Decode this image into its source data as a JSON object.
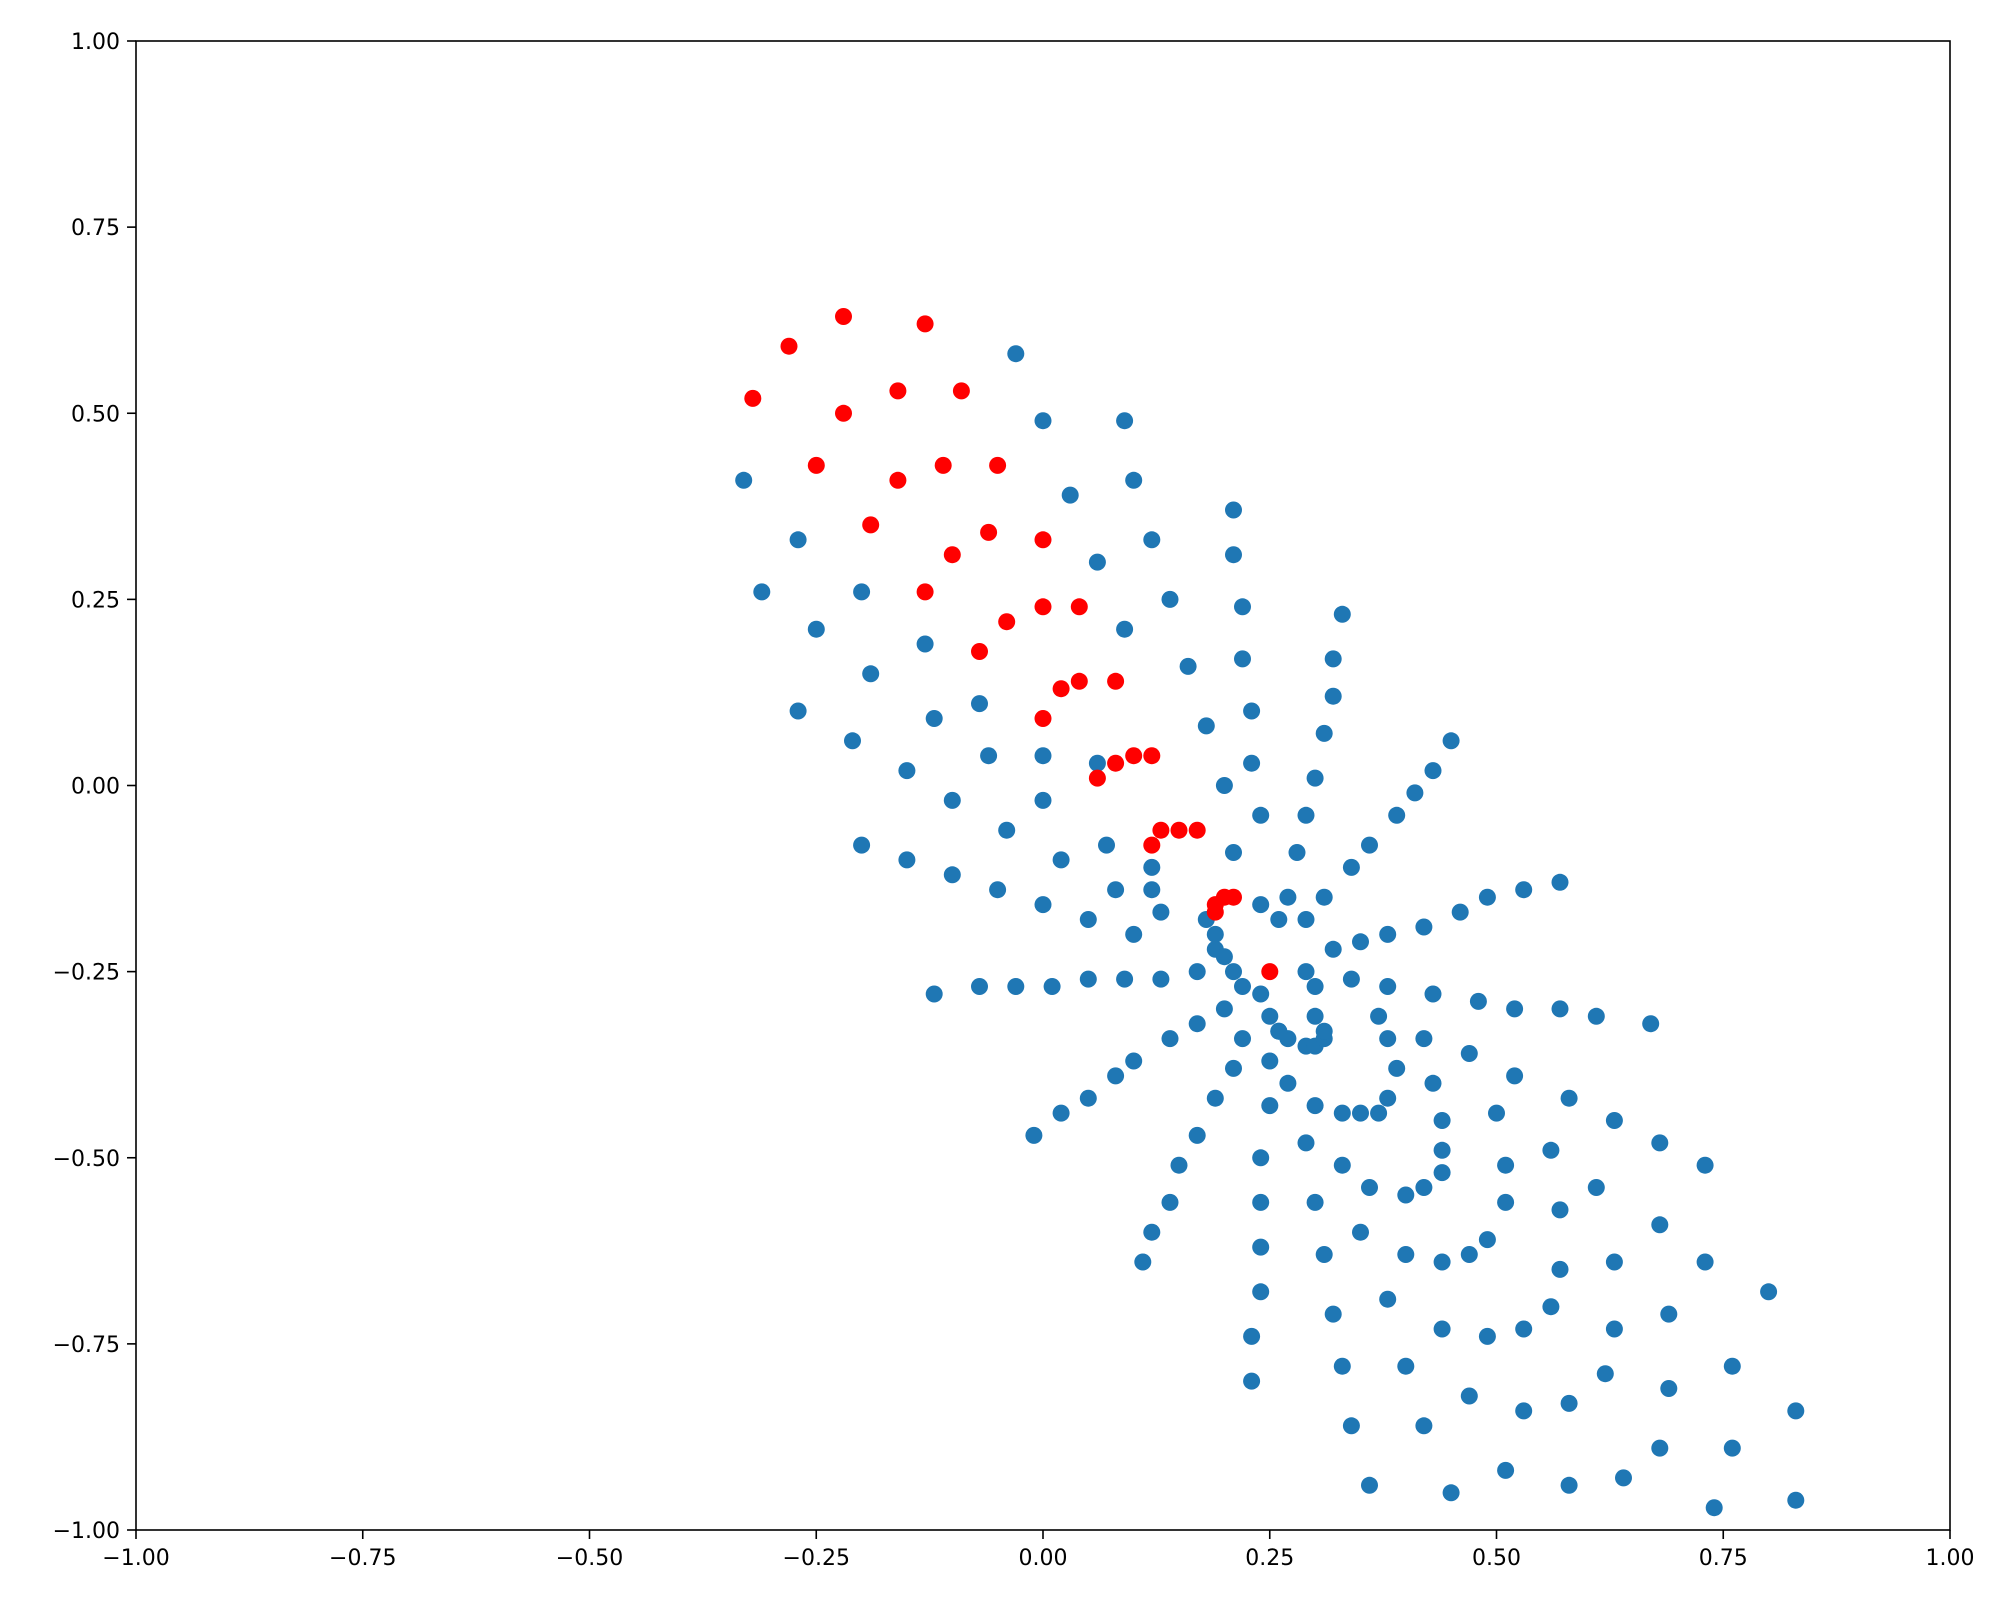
{
  "chart_data": {
    "type": "scatter",
    "title": "",
    "xlabel": "",
    "ylabel": "",
    "xlim": [
      -1.0,
      1.0
    ],
    "ylim": [
      -1.0,
      1.0
    ],
    "grid": false,
    "x_ticks": [
      "−1.00",
      "−0.75",
      "−0.50",
      "−0.25",
      "0.00",
      "0.25",
      "0.50",
      "0.75",
      "1.00"
    ],
    "y_ticks": [
      "−1.00",
      "−0.75",
      "−0.50",
      "−0.25",
      "0.00",
      "0.25",
      "0.50",
      "0.75",
      "1.00"
    ],
    "series": [
      {
        "color": "#1f77b4",
        "points": [
          [
            -0.33,
            0.41
          ],
          [
            -0.31,
            0.26
          ],
          [
            -0.27,
            0.1
          ],
          [
            -0.21,
            0.06
          ],
          [
            -0.2,
            -0.08
          ],
          [
            -0.27,
            0.33
          ],
          [
            -0.25,
            0.21
          ],
          [
            -0.2,
            0.26
          ],
          [
            -0.19,
            0.15
          ],
          [
            -0.15,
            0.02
          ],
          [
            -0.15,
            -0.1
          ],
          [
            -0.03,
            0.58
          ],
          [
            0.0,
            0.49
          ],
          [
            0.03,
            0.39
          ],
          [
            0.06,
            0.3
          ],
          [
            0.09,
            0.21
          ],
          [
            0.09,
            0.49
          ],
          [
            0.1,
            0.41
          ],
          [
            0.12,
            0.33
          ],
          [
            0.14,
            0.25
          ],
          [
            0.16,
            0.16
          ],
          [
            0.18,
            0.08
          ],
          [
            0.2,
            0.0
          ],
          [
            0.21,
            -0.09
          ],
          [
            0.21,
            0.37
          ],
          [
            0.21,
            0.31
          ],
          [
            0.22,
            0.24
          ],
          [
            0.22,
            0.17
          ],
          [
            0.23,
            0.1
          ],
          [
            0.23,
            0.03
          ],
          [
            0.24,
            -0.04
          ],
          [
            0.33,
            0.23
          ],
          [
            0.32,
            0.17
          ],
          [
            0.32,
            0.12
          ],
          [
            0.31,
            0.07
          ],
          [
            0.3,
            0.01
          ],
          [
            0.29,
            -0.04
          ],
          [
            0.28,
            -0.09
          ],
          [
            0.27,
            -0.15
          ],
          [
            0.45,
            0.06
          ],
          [
            0.43,
            0.02
          ],
          [
            0.41,
            -0.01
          ],
          [
            0.39,
            -0.04
          ],
          [
            0.36,
            -0.08
          ],
          [
            0.34,
            -0.11
          ],
          [
            0.31,
            -0.15
          ],
          [
            0.29,
            -0.18
          ],
          [
            0.26,
            -0.18
          ],
          [
            0.24,
            -0.16
          ],
          [
            0.57,
            -0.13
          ],
          [
            0.53,
            -0.14
          ],
          [
            0.49,
            -0.15
          ],
          [
            0.46,
            -0.17
          ],
          [
            0.42,
            -0.19
          ],
          [
            0.38,
            -0.2
          ],
          [
            0.35,
            -0.21
          ],
          [
            0.32,
            -0.22
          ],
          [
            0.67,
            -0.32
          ],
          [
            0.61,
            -0.31
          ],
          [
            0.57,
            -0.3
          ],
          [
            0.52,
            -0.3
          ],
          [
            0.48,
            -0.29
          ],
          [
            0.43,
            -0.28
          ],
          [
            0.38,
            -0.27
          ],
          [
            0.34,
            -0.26
          ],
          [
            0.3,
            -0.27
          ],
          [
            0.29,
            -0.25
          ],
          [
            -0.12,
            -0.28
          ],
          [
            -0.07,
            -0.27
          ],
          [
            -0.03,
            -0.27
          ],
          [
            0.01,
            -0.27
          ],
          [
            0.05,
            -0.26
          ],
          [
            0.09,
            -0.26
          ],
          [
            0.13,
            -0.26
          ],
          [
            0.17,
            -0.25
          ],
          [
            -0.13,
            0.19
          ],
          [
            -0.12,
            0.09
          ],
          [
            -0.1,
            -0.02
          ],
          [
            -0.1,
            -0.12
          ],
          [
            -0.07,
            0.11
          ],
          [
            -0.06,
            0.04
          ],
          [
            -0.04,
            -0.06
          ],
          [
            -0.05,
            -0.14
          ],
          [
            0.0,
            0.04
          ],
          [
            0.0,
            -0.02
          ],
          [
            0.02,
            -0.1
          ],
          [
            0.0,
            -0.16
          ],
          [
            0.06,
            0.03
          ],
          [
            0.07,
            -0.08
          ],
          [
            0.08,
            -0.14
          ],
          [
            0.05,
            -0.18
          ],
          [
            0.12,
            -0.11
          ],
          [
            0.12,
            -0.14
          ],
          [
            0.13,
            -0.17
          ],
          [
            0.1,
            -0.2
          ],
          [
            0.18,
            -0.18
          ],
          [
            0.19,
            -0.2
          ],
          [
            0.19,
            -0.22
          ],
          [
            0.2,
            -0.23
          ],
          [
            0.21,
            -0.25
          ],
          [
            0.22,
            -0.27
          ],
          [
            0.24,
            -0.28
          ],
          [
            0.25,
            -0.31
          ],
          [
            0.26,
            -0.33
          ],
          [
            0.27,
            -0.34
          ],
          [
            0.29,
            -0.35
          ],
          [
            0.3,
            -0.35
          ],
          [
            0.31,
            -0.34
          ],
          [
            0.31,
            -0.33
          ],
          [
            0.3,
            -0.31
          ],
          [
            -0.01,
            -0.47
          ],
          [
            0.02,
            -0.44
          ],
          [
            0.05,
            -0.42
          ],
          [
            0.08,
            -0.39
          ],
          [
            0.1,
            -0.37
          ],
          [
            0.14,
            -0.34
          ],
          [
            0.17,
            -0.32
          ],
          [
            0.2,
            -0.3
          ],
          [
            0.11,
            -0.64
          ],
          [
            0.12,
            -0.6
          ],
          [
            0.14,
            -0.56
          ],
          [
            0.15,
            -0.51
          ],
          [
            0.17,
            -0.47
          ],
          [
            0.19,
            -0.42
          ],
          [
            0.21,
            -0.38
          ],
          [
            0.22,
            -0.34
          ],
          [
            0.23,
            -0.8
          ],
          [
            0.23,
            -0.74
          ],
          [
            0.24,
            -0.68
          ],
          [
            0.24,
            -0.62
          ],
          [
            0.24,
            -0.56
          ],
          [
            0.24,
            -0.5
          ],
          [
            0.25,
            -0.43
          ],
          [
            0.25,
            -0.37
          ],
          [
            0.26,
            -0.33
          ],
          [
            0.33,
            -0.78
          ],
          [
            0.32,
            -0.71
          ],
          [
            0.31,
            -0.63
          ],
          [
            0.3,
            -0.56
          ],
          [
            0.29,
            -0.48
          ],
          [
            0.27,
            -0.4
          ],
          [
            0.34,
            -0.86
          ],
          [
            0.36,
            -0.94
          ],
          [
            0.35,
            -0.6
          ],
          [
            0.36,
            -0.54
          ],
          [
            0.33,
            -0.51
          ],
          [
            0.3,
            -0.43
          ],
          [
            0.33,
            -0.44
          ],
          [
            0.35,
            -0.44
          ],
          [
            0.37,
            -0.44
          ],
          [
            0.38,
            -0.42
          ],
          [
            0.39,
            -0.38
          ],
          [
            0.38,
            -0.34
          ],
          [
            0.37,
            -0.31
          ],
          [
            0.38,
            -0.69
          ],
          [
            0.4,
            -0.63
          ],
          [
            0.4,
            -0.78
          ],
          [
            0.42,
            -0.86
          ],
          [
            0.45,
            -0.95
          ],
          [
            0.4,
            -0.55
          ],
          [
            0.42,
            -0.54
          ],
          [
            0.44,
            -0.52
          ],
          [
            0.44,
            -0.49
          ],
          [
            0.44,
            -0.45
          ],
          [
            0.43,
            -0.4
          ],
          [
            0.42,
            -0.34
          ],
          [
            0.47,
            -0.36
          ],
          [
            0.5,
            -0.44
          ],
          [
            0.51,
            -0.51
          ],
          [
            0.51,
            -0.56
          ],
          [
            0.49,
            -0.61
          ],
          [
            0.47,
            -0.63
          ],
          [
            0.44,
            -0.64
          ],
          [
            0.44,
            -0.73
          ],
          [
            0.47,
            -0.82
          ],
          [
            0.49,
            -0.74
          ],
          [
            0.51,
            -0.92
          ],
          [
            0.53,
            -0.84
          ],
          [
            0.53,
            -0.73
          ],
          [
            0.56,
            -0.7
          ],
          [
            0.52,
            -0.39
          ],
          [
            0.56,
            -0.49
          ],
          [
            0.57,
            -0.57
          ],
          [
            0.57,
            -0.65
          ],
          [
            0.58,
            -0.42
          ],
          [
            0.58,
            -0.83
          ],
          [
            0.58,
            -0.94
          ],
          [
            0.61,
            -0.54
          ],
          [
            0.62,
            -0.79
          ],
          [
            0.63,
            -0.73
          ],
          [
            0.63,
            -0.64
          ],
          [
            0.63,
            -0.45
          ],
          [
            0.64,
            -0.93
          ],
          [
            0.68,
            -0.48
          ],
          [
            0.68,
            -0.59
          ],
          [
            0.68,
            -0.89
          ],
          [
            0.69,
            -0.81
          ],
          [
            0.69,
            -0.71
          ],
          [
            0.73,
            -0.51
          ],
          [
            0.73,
            -0.64
          ],
          [
            0.74,
            -0.97
          ],
          [
            0.76,
            -0.78
          ],
          [
            0.76,
            -0.89
          ],
          [
            0.8,
            -0.68
          ],
          [
            0.83,
            -0.84
          ],
          [
            0.83,
            -0.96
          ]
        ]
      },
      {
        "color": "#ff0000",
        "points": [
          [
            -0.32,
            0.52
          ],
          [
            -0.28,
            0.59
          ],
          [
            -0.22,
            0.63
          ],
          [
            -0.13,
            0.62
          ],
          [
            -0.25,
            0.43
          ],
          [
            -0.22,
            0.5
          ],
          [
            -0.16,
            0.53
          ],
          [
            -0.09,
            0.53
          ],
          [
            -0.19,
            0.35
          ],
          [
            -0.16,
            0.41
          ],
          [
            -0.11,
            0.43
          ],
          [
            -0.05,
            0.43
          ],
          [
            -0.13,
            0.26
          ],
          [
            -0.1,
            0.31
          ],
          [
            -0.06,
            0.34
          ],
          [
            0.0,
            0.33
          ],
          [
            -0.07,
            0.18
          ],
          [
            -0.04,
            0.22
          ],
          [
            0.0,
            0.24
          ],
          [
            0.04,
            0.24
          ],
          [
            0.0,
            0.09
          ],
          [
            0.02,
            0.13
          ],
          [
            0.04,
            0.14
          ],
          [
            0.08,
            0.14
          ],
          [
            0.06,
            0.01
          ],
          [
            0.08,
            0.03
          ],
          [
            0.1,
            0.04
          ],
          [
            0.12,
            0.04
          ],
          [
            0.12,
            -0.08
          ],
          [
            0.13,
            -0.06
          ],
          [
            0.15,
            -0.06
          ],
          [
            0.17,
            -0.06
          ],
          [
            0.19,
            -0.17
          ],
          [
            0.19,
            -0.16
          ],
          [
            0.2,
            -0.15
          ],
          [
            0.21,
            -0.15
          ],
          [
            0.25,
            -0.25
          ]
        ]
      }
    ]
  }
}
